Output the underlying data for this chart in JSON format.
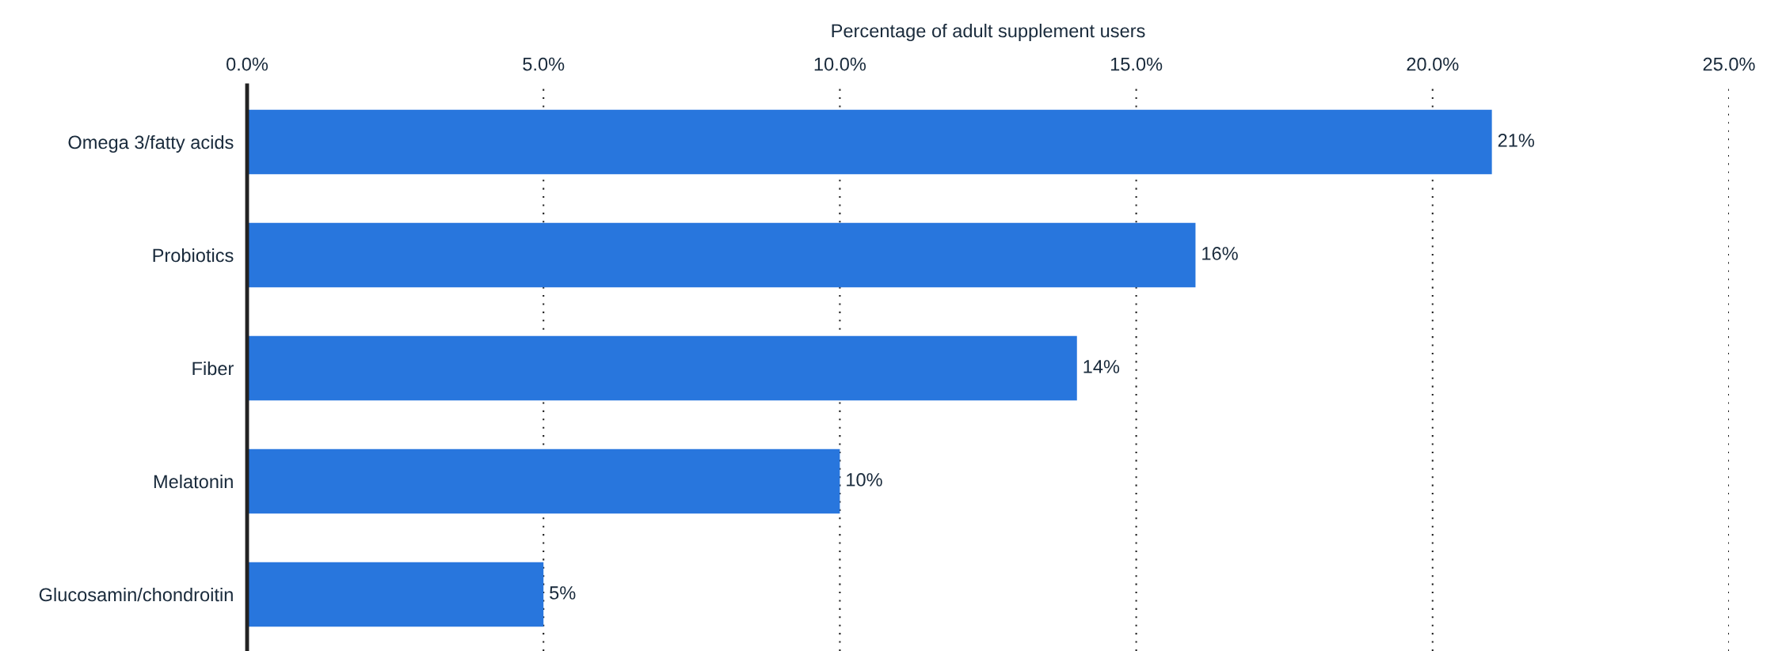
{
  "chart_data": {
    "type": "bar",
    "orientation": "horizontal",
    "xlabel": "Percentage of adult supplement users",
    "categories": [
      "Omega 3/fatty acids",
      "Probiotics",
      "Fiber",
      "Melatonin",
      "Glucosamin/chondroitin"
    ],
    "values": [
      21,
      16,
      14,
      10,
      5
    ],
    "color": "#2876dd",
    "value_labels": [
      "21%",
      "16%",
      "14%",
      "10%",
      "5%"
    ],
    "xlim": [
      0,
      25
    ],
    "xticks": [
      {
        "value": 0,
        "label": "0.0%"
      },
      {
        "value": 5,
        "label": "5.0%"
      },
      {
        "value": 10,
        "label": "10.0%"
      },
      {
        "value": 15,
        "label": "15.0%"
      },
      {
        "value": 20,
        "label": "20.0%"
      },
      {
        "value": 25,
        "label": "25.0%"
      }
    ],
    "grid": "x",
    "line_style": "dotted",
    "legend": false
  }
}
